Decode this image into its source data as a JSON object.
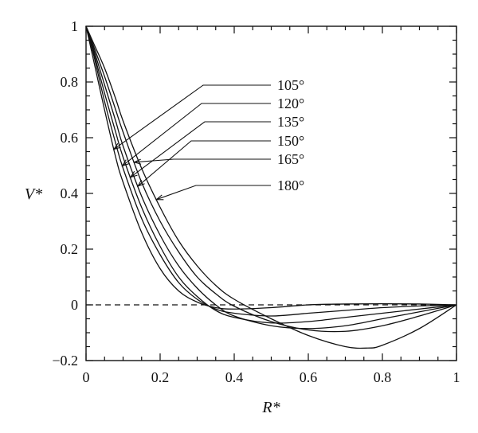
{
  "chart_data": {
    "type": "line",
    "title": "",
    "xlabel": "R*",
    "ylabel": "V*",
    "xlim": [
      0,
      1
    ],
    "ylim": [
      -0.2,
      1
    ],
    "x_ticks": [
      0,
      0.2,
      0.4,
      0.6,
      0.8,
      1
    ],
    "x_tick_labels": [
      "0",
      "0.2",
      "0.4",
      "0.6",
      "0.8",
      "1"
    ],
    "y_ticks": [
      -0.2,
      0,
      0.2,
      0.4,
      0.6,
      0.8,
      1
    ],
    "y_tick_labels": [
      "−0.2",
      "0",
      "0.2",
      "0.4",
      "0.6",
      "0.8",
      "1"
    ],
    "grid": false,
    "legend": "none",
    "reference_line": {
      "y": 0,
      "style": "dashed"
    },
    "annotations": [
      "105°",
      "120°",
      "135°",
      "150°",
      "165°",
      "180°"
    ],
    "series": [
      {
        "name": "105°",
        "points": [
          [
            0,
            1
          ],
          [
            0.02,
            0.88
          ],
          [
            0.05,
            0.7
          ],
          [
            0.08,
            0.53
          ],
          [
            0.1,
            0.44
          ],
          [
            0.15,
            0.26
          ],
          [
            0.2,
            0.13
          ],
          [
            0.25,
            0.05
          ],
          [
            0.3,
            0.01
          ],
          [
            0.35,
            -0.01
          ],
          [
            0.4,
            -0.015
          ],
          [
            0.5,
            -0.01
          ],
          [
            0.6,
            0.0
          ],
          [
            0.7,
            0.003
          ],
          [
            0.8,
            0.004
          ],
          [
            0.9,
            0.003
          ],
          [
            1,
            0
          ]
        ]
      },
      {
        "name": "120°",
        "points": [
          [
            0,
            1
          ],
          [
            0.02,
            0.9
          ],
          [
            0.05,
            0.73
          ],
          [
            0.08,
            0.58
          ],
          [
            0.1,
            0.49
          ],
          [
            0.15,
            0.31
          ],
          [
            0.2,
            0.18
          ],
          [
            0.25,
            0.08
          ],
          [
            0.3,
            0.02
          ],
          [
            0.35,
            -0.015
          ],
          [
            0.4,
            -0.03
          ],
          [
            0.5,
            -0.04
          ],
          [
            0.6,
            -0.03
          ],
          [
            0.7,
            -0.02
          ],
          [
            0.8,
            -0.01
          ],
          [
            0.9,
            -0.004
          ],
          [
            1,
            0
          ]
        ]
      },
      {
        "name": "135°",
        "points": [
          [
            0,
            1
          ],
          [
            0.02,
            0.91
          ],
          [
            0.05,
            0.76
          ],
          [
            0.08,
            0.62
          ],
          [
            0.1,
            0.53
          ],
          [
            0.15,
            0.35
          ],
          [
            0.2,
            0.21
          ],
          [
            0.25,
            0.1
          ],
          [
            0.3,
            0.03
          ],
          [
            0.35,
            -0.02
          ],
          [
            0.4,
            -0.045
          ],
          [
            0.5,
            -0.065
          ],
          [
            0.6,
            -0.06
          ],
          [
            0.7,
            -0.045
          ],
          [
            0.8,
            -0.03
          ],
          [
            0.9,
            -0.015
          ],
          [
            1,
            0
          ]
        ]
      },
      {
        "name": "150°",
        "points": [
          [
            0,
            1
          ],
          [
            0.02,
            0.92
          ],
          [
            0.05,
            0.79
          ],
          [
            0.08,
            0.66
          ],
          [
            0.1,
            0.57
          ],
          [
            0.15,
            0.39
          ],
          [
            0.2,
            0.25
          ],
          [
            0.25,
            0.14
          ],
          [
            0.3,
            0.06
          ],
          [
            0.35,
            0.0
          ],
          [
            0.4,
            -0.04
          ],
          [
            0.5,
            -0.075
          ],
          [
            0.6,
            -0.085
          ],
          [
            0.7,
            -0.075
          ],
          [
            0.8,
            -0.05
          ],
          [
            0.9,
            -0.025
          ],
          [
            1,
            0
          ]
        ]
      },
      {
        "name": "165°",
        "points": [
          [
            0,
            1
          ],
          [
            0.02,
            0.93
          ],
          [
            0.05,
            0.82
          ],
          [
            0.08,
            0.7
          ],
          [
            0.1,
            0.62
          ],
          [
            0.15,
            0.44
          ],
          [
            0.2,
            0.3
          ],
          [
            0.25,
            0.19
          ],
          [
            0.3,
            0.1
          ],
          [
            0.35,
            0.04
          ],
          [
            0.4,
            -0.005
          ],
          [
            0.5,
            -0.06
          ],
          [
            0.6,
            -0.09
          ],
          [
            0.7,
            -0.095
          ],
          [
            0.8,
            -0.075
          ],
          [
            0.9,
            -0.04
          ],
          [
            1,
            0
          ]
        ]
      },
      {
        "name": "180°",
        "points": [
          [
            0,
            1
          ],
          [
            0.02,
            0.94
          ],
          [
            0.05,
            0.85
          ],
          [
            0.08,
            0.74
          ],
          [
            0.1,
            0.66
          ],
          [
            0.15,
            0.49
          ],
          [
            0.2,
            0.35
          ],
          [
            0.25,
            0.23
          ],
          [
            0.3,
            0.14
          ],
          [
            0.35,
            0.07
          ],
          [
            0.4,
            0.02
          ],
          [
            0.5,
            -0.05
          ],
          [
            0.6,
            -0.11
          ],
          [
            0.7,
            -0.15
          ],
          [
            0.76,
            -0.155
          ],
          [
            0.8,
            -0.145
          ],
          [
            0.9,
            -0.085
          ],
          [
            1,
            0
          ]
        ]
      }
    ]
  }
}
